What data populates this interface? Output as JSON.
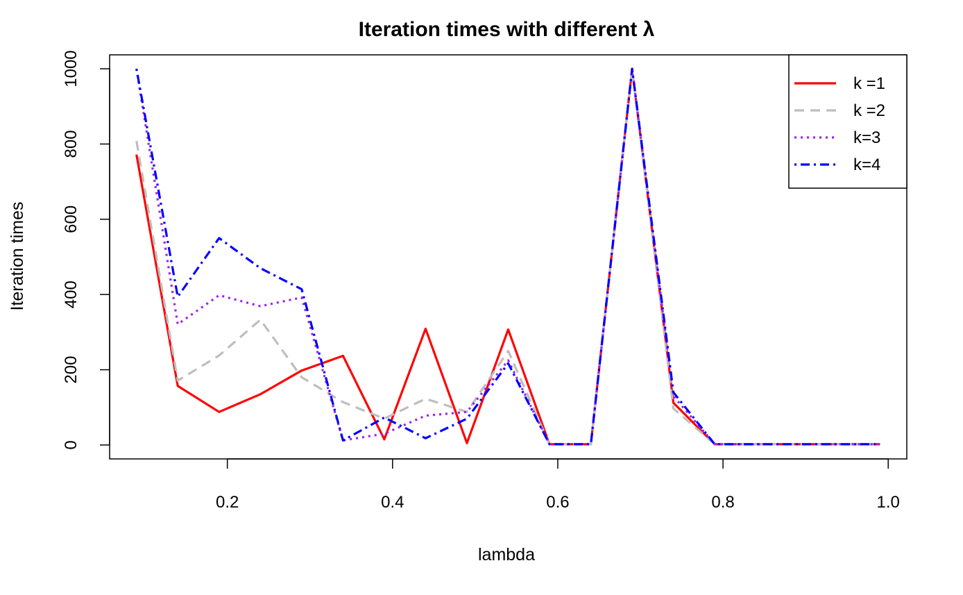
{
  "chart_data": {
    "type": "line",
    "title": "Iteration times with different λ",
    "xlabel": "lambda",
    "ylabel": "Iteration times",
    "xlim": [
      0.0575,
      1.0225
    ],
    "ylim": [
      -37,
      1037
    ],
    "xticks": [
      0.2,
      0.4,
      0.6,
      0.8,
      1.0
    ],
    "xtick_labels": [
      "0.2",
      "0.4",
      "0.6",
      "0.8",
      "1.0"
    ],
    "yticks": [
      0,
      200,
      400,
      600,
      800,
      1000
    ],
    "ytick_labels": [
      "0",
      "200",
      "400",
      "600",
      "800",
      "1000"
    ],
    "grid": false,
    "legend_position": "top-right",
    "x": [
      0.09,
      0.14,
      0.19,
      0.24,
      0.29,
      0.34,
      0.39,
      0.44,
      0.49,
      0.54,
      0.59,
      0.64,
      0.69,
      0.74,
      0.79,
      0.84,
      0.89,
      0.94,
      0.99
    ],
    "series": [
      {
        "name": "k =1",
        "color": "#ff0000",
        "dash": "solid",
        "values": [
          772,
          157,
          88,
          135,
          198,
          237,
          15,
          309,
          5,
          307,
          2,
          2,
          1000,
          112,
          2,
          2,
          2,
          2,
          2
        ]
      },
      {
        "name": "k =2",
        "color": "#bebebe",
        "dash": "dashed",
        "values": [
          808,
          171,
          238,
          333,
          180,
          114,
          70,
          123,
          88,
          250,
          2,
          2,
          1000,
          97,
          2,
          2,
          2,
          2,
          2
        ]
      },
      {
        "name": "k=3",
        "color": "#a020f0",
        "dash": "dotted",
        "values": [
          1000,
          321,
          398,
          369,
          392,
          12,
          30,
          78,
          88,
          225,
          2,
          2,
          1000,
          130,
          2,
          2,
          2,
          2,
          2
        ]
      },
      {
        "name": "k=4",
        "color": "#0000ff",
        "dash": "dotdash",
        "values": [
          1000,
          394,
          550,
          470,
          414,
          12,
          73,
          18,
          70,
          217,
          2,
          2,
          1000,
          140,
          2,
          2,
          2,
          2,
          2
        ]
      }
    ]
  }
}
